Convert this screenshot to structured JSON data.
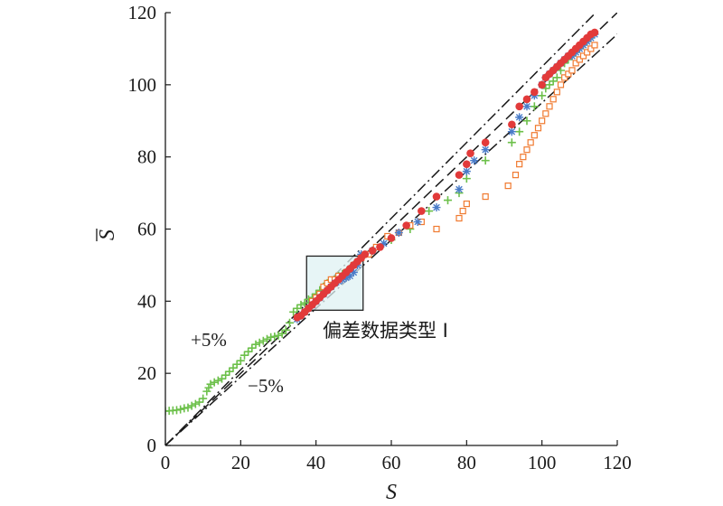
{
  "chart_data": {
    "type": "scatter",
    "xlabel": "S",
    "ylabel": "S",
    "xlim": [
      0,
      120
    ],
    "ylim": [
      0,
      120
    ],
    "xticks": [
      "0",
      "20",
      "40",
      "60",
      "80",
      "100",
      "120"
    ],
    "yticks": [
      "0",
      "20",
      "40",
      "60",
      "80",
      "100",
      "120"
    ],
    "grid": false,
    "legend": "none",
    "reference_lines": [
      {
        "style": "dashed",
        "slope": 1.0
      },
      {
        "style": "dash-dot",
        "slope": 1.05
      },
      {
        "style": "dash-dot",
        "slope": 0.95
      }
    ],
    "annotations": {
      "plus5": "+5%",
      "minus5": "−5%",
      "box_label": "偏差数据类型 I",
      "box": {
        "x": [
          37.5,
          52.5
        ],
        "y": [
          37.5,
          52.5
        ]
      }
    },
    "series": [
      {
        "marker": "plus",
        "color": "#6cc04a",
        "points": [
          [
            0,
            9.5
          ],
          [
            1,
            9.6
          ],
          [
            2,
            9.7
          ],
          [
            3,
            9.8
          ],
          [
            4,
            10
          ],
          [
            5,
            10.3
          ],
          [
            6,
            10.5
          ],
          [
            7,
            11
          ],
          [
            8,
            11.5
          ],
          [
            9,
            12
          ],
          [
            10,
            13
          ],
          [
            11,
            15
          ],
          [
            11.5,
            16
          ],
          [
            12,
            17
          ],
          [
            13,
            17.5
          ],
          [
            14,
            18
          ],
          [
            15,
            18.5
          ],
          [
            16,
            19.5
          ],
          [
            17,
            20.5
          ],
          [
            18,
            21.5
          ],
          [
            19,
            22.5
          ],
          [
            20,
            23.5
          ],
          [
            21,
            25
          ],
          [
            22,
            26
          ],
          [
            23,
            27
          ],
          [
            24,
            28
          ],
          [
            25,
            28.5
          ],
          [
            26,
            29
          ],
          [
            27,
            29.5
          ],
          [
            28,
            30
          ],
          [
            29,
            30.2
          ],
          [
            30,
            30.5
          ],
          [
            31,
            31
          ],
          [
            32,
            32
          ],
          [
            33,
            34
          ],
          [
            34,
            37
          ],
          [
            35,
            38
          ],
          [
            36,
            39
          ],
          [
            37,
            39.5
          ],
          [
            38,
            40.5
          ],
          [
            39,
            41
          ],
          [
            40,
            42
          ],
          [
            41,
            43
          ],
          [
            42,
            44
          ],
          [
            43,
            45
          ],
          [
            44,
            45.5
          ],
          [
            45,
            46
          ],
          [
            46,
            47
          ],
          [
            47,
            47.5
          ],
          [
            48,
            48
          ],
          [
            49,
            49
          ],
          [
            50,
            50
          ],
          [
            52,
            52
          ],
          [
            55,
            54
          ],
          [
            60,
            57
          ],
          [
            65,
            60
          ],
          [
            70,
            65
          ],
          [
            75,
            68
          ],
          [
            78,
            70
          ],
          [
            80,
            74
          ],
          [
            85,
            79
          ],
          [
            92,
            84
          ],
          [
            94,
            87
          ],
          [
            96,
            90
          ],
          [
            98,
            94
          ],
          [
            100,
            97
          ],
          [
            101,
            99
          ],
          [
            102,
            100
          ],
          [
            103,
            101
          ],
          [
            104,
            102
          ],
          [
            105,
            104
          ],
          [
            106,
            106
          ],
          [
            107,
            107
          ],
          [
            108,
            108
          ],
          [
            109,
            109
          ],
          [
            110,
            110
          ],
          [
            111,
            111
          ],
          [
            112,
            112
          ],
          [
            113,
            113
          ]
        ]
      },
      {
        "marker": "square",
        "color": "#f07a30",
        "points": [
          [
            37,
            37
          ],
          [
            38,
            38
          ],
          [
            39,
            40
          ],
          [
            40,
            41
          ],
          [
            41,
            42
          ],
          [
            42,
            44
          ],
          [
            43,
            45
          ],
          [
            44,
            46
          ],
          [
            45,
            46
          ],
          [
            46,
            47
          ],
          [
            48,
            48
          ],
          [
            50,
            50
          ],
          [
            52,
            52
          ],
          [
            54,
            53
          ],
          [
            56,
            55
          ],
          [
            59,
            58
          ],
          [
            62,
            59
          ],
          [
            65,
            61
          ],
          [
            68,
            62
          ],
          [
            72,
            60
          ],
          [
            78,
            63
          ],
          [
            79,
            65
          ],
          [
            80,
            67
          ],
          [
            85,
            69
          ],
          [
            91,
            72
          ],
          [
            93,
            75
          ],
          [
            94,
            78
          ],
          [
            95,
            80
          ],
          [
            96,
            82
          ],
          [
            97,
            84
          ],
          [
            98,
            86
          ],
          [
            99,
            88
          ],
          [
            100,
            90
          ],
          [
            101,
            92
          ],
          [
            102,
            94
          ],
          [
            103,
            96
          ],
          [
            104,
            98
          ],
          [
            105,
            100
          ],
          [
            106,
            102
          ],
          [
            107,
            103
          ],
          [
            108,
            104
          ],
          [
            109,
            106
          ],
          [
            110,
            107
          ],
          [
            111,
            108
          ],
          [
            112,
            109
          ],
          [
            113,
            110
          ],
          [
            114,
            111
          ]
        ]
      },
      {
        "marker": "asterisk",
        "color": "#4a7cc9",
        "points": [
          [
            35,
            35
          ],
          [
            36,
            36
          ],
          [
            37,
            37
          ],
          [
            38,
            38
          ],
          [
            39,
            39
          ],
          [
            40,
            40
          ],
          [
            41,
            41
          ],
          [
            42,
            42
          ],
          [
            43,
            43
          ],
          [
            44,
            44
          ],
          [
            45,
            45
          ],
          [
            46,
            45.5
          ],
          [
            47,
            46
          ],
          [
            48,
            46.5
          ],
          [
            49,
            47
          ],
          [
            50,
            48
          ],
          [
            51,
            50
          ],
          [
            52,
            53
          ],
          [
            55,
            54
          ],
          [
            58,
            56
          ],
          [
            62,
            59
          ],
          [
            67,
            62
          ],
          [
            72,
            66
          ],
          [
            78,
            71
          ],
          [
            80,
            76
          ],
          [
            82,
            79
          ],
          [
            85,
            82
          ],
          [
            92,
            87
          ],
          [
            94,
            91
          ],
          [
            96,
            94
          ],
          [
            98,
            97
          ],
          [
            100,
            100
          ],
          [
            101,
            102
          ],
          [
            102,
            103
          ],
          [
            103,
            104
          ],
          [
            104,
            105
          ],
          [
            105,
            106
          ],
          [
            106,
            107
          ],
          [
            107,
            108
          ],
          [
            108,
            108
          ],
          [
            109,
            109
          ],
          [
            110,
            110
          ],
          [
            111,
            111
          ],
          [
            112,
            112
          ],
          [
            113,
            113
          ],
          [
            114,
            114
          ]
        ]
      },
      {
        "marker": "circle",
        "color": "#e23a3a",
        "points": [
          [
            35,
            35.5
          ],
          [
            36,
            36
          ],
          [
            37,
            37
          ],
          [
            38,
            38
          ],
          [
            39,
            39
          ],
          [
            40,
            40
          ],
          [
            41,
            41
          ],
          [
            42,
            42
          ],
          [
            43,
            43
          ],
          [
            44,
            44
          ],
          [
            45,
            45
          ],
          [
            46,
            46
          ],
          [
            47,
            47
          ],
          [
            48,
            48
          ],
          [
            49,
            49
          ],
          [
            50,
            50
          ],
          [
            51,
            51
          ],
          [
            52,
            52
          ],
          [
            53,
            53
          ],
          [
            55,
            54
          ],
          [
            57,
            55
          ],
          [
            60,
            57.5
          ],
          [
            64,
            61
          ],
          [
            68,
            65
          ],
          [
            72,
            69
          ],
          [
            78,
            75
          ],
          [
            80,
            78
          ],
          [
            81,
            81
          ],
          [
            85,
            84
          ],
          [
            92,
            89
          ],
          [
            94,
            94
          ],
          [
            96,
            96
          ],
          [
            98,
            98
          ],
          [
            100,
            100
          ],
          [
            101,
            102
          ],
          [
            102,
            103
          ],
          [
            103,
            104
          ],
          [
            104,
            105
          ],
          [
            105,
            106
          ],
          [
            106,
            107
          ],
          [
            107,
            108
          ],
          [
            108,
            109
          ],
          [
            109,
            110
          ],
          [
            110,
            111
          ],
          [
            111,
            112
          ],
          [
            112,
            113
          ],
          [
            113,
            114
          ],
          [
            114,
            114.5
          ]
        ]
      }
    ]
  }
}
